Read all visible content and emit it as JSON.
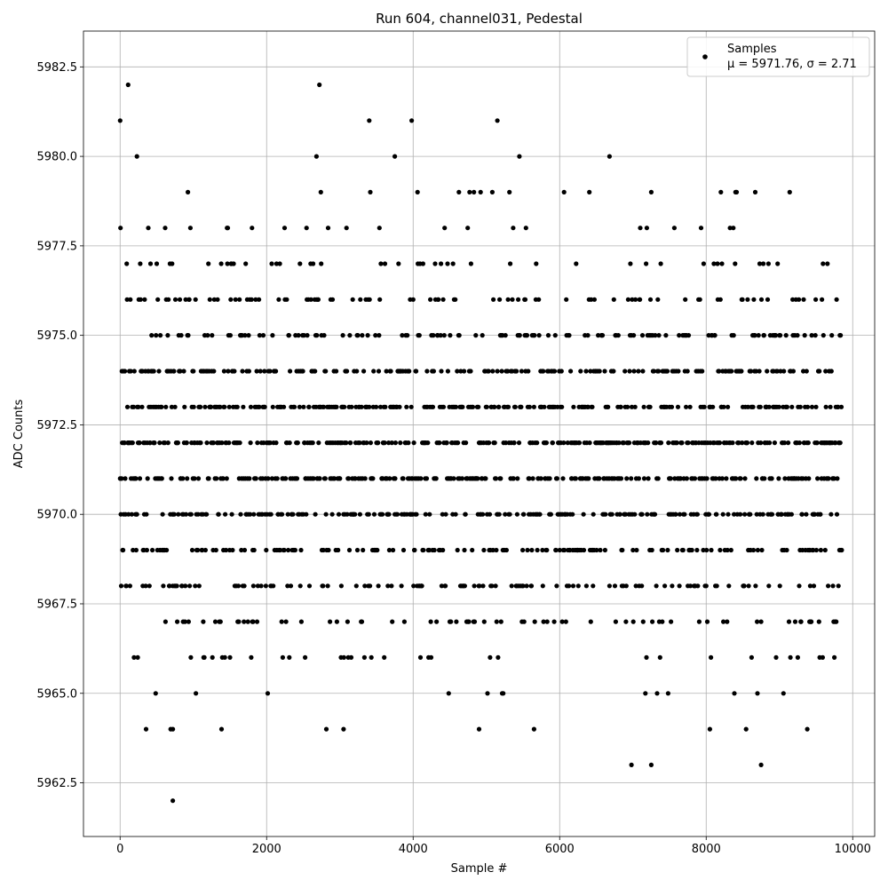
{
  "chart_data": {
    "type": "scatter",
    "title": "Run 604, channel031, Pedestal",
    "xlabel": "Sample #",
    "ylabel": "ADC Counts",
    "xlim": [
      -500,
      10300
    ],
    "ylim": [
      5961.0,
      5983.5
    ],
    "xticks": [
      0,
      2000,
      4000,
      6000,
      8000,
      10000
    ],
    "xtick_labels": [
      "0",
      "2000",
      "4000",
      "6000",
      "8000",
      "10000"
    ],
    "yticks": [
      5962.5,
      5965.0,
      5967.5,
      5970.0,
      5972.5,
      5975.0,
      5977.5,
      5980.0,
      5982.5
    ],
    "ytick_labels": [
      "5962.5",
      "5965.0",
      "5967.5",
      "5970.0",
      "5972.5",
      "5975.0",
      "5977.5",
      "5980.0",
      "5982.5"
    ],
    "grid": true,
    "legend": {
      "placement": "upper-right",
      "entries": [
        {
          "label_line1": "Samples",
          "label_line2": "μ = 5971.76, σ = 2.71",
          "color": "#000000",
          "marker": "circle"
        }
      ]
    },
    "marker_color": "#000000",
    "sample_range": [
      0,
      9850
    ],
    "mean": 5971.76,
    "sigma": 2.71,
    "notable_points": [
      {
        "x": 0,
        "y": 5981
      },
      {
        "x": 110,
        "y": 5982
      },
      {
        "x": 230,
        "y": 5980
      },
      {
        "x": 2720,
        "y": 5982
      },
      {
        "x": 2680,
        "y": 5980
      },
      {
        "x": 3400,
        "y": 5981
      },
      {
        "x": 3980,
        "y": 5981
      },
      {
        "x": 5150,
        "y": 5981
      },
      {
        "x": 3750,
        "y": 5980
      },
      {
        "x": 5450,
        "y": 5980
      },
      {
        "x": 6680,
        "y": 5980
      },
      {
        "x": 720,
        "y": 5962
      },
      {
        "x": 6980,
        "y": 5963
      },
      {
        "x": 7250,
        "y": 5963
      },
      {
        "x": 8750,
        "y": 5963
      },
      {
        "x": 720,
        "y": 5964
      },
      {
        "x": 3050,
        "y": 5964
      },
      {
        "x": 4900,
        "y": 5964
      },
      {
        "x": 5650,
        "y": 5964
      },
      {
        "x": 8050,
        "y": 5964
      }
    ]
  }
}
